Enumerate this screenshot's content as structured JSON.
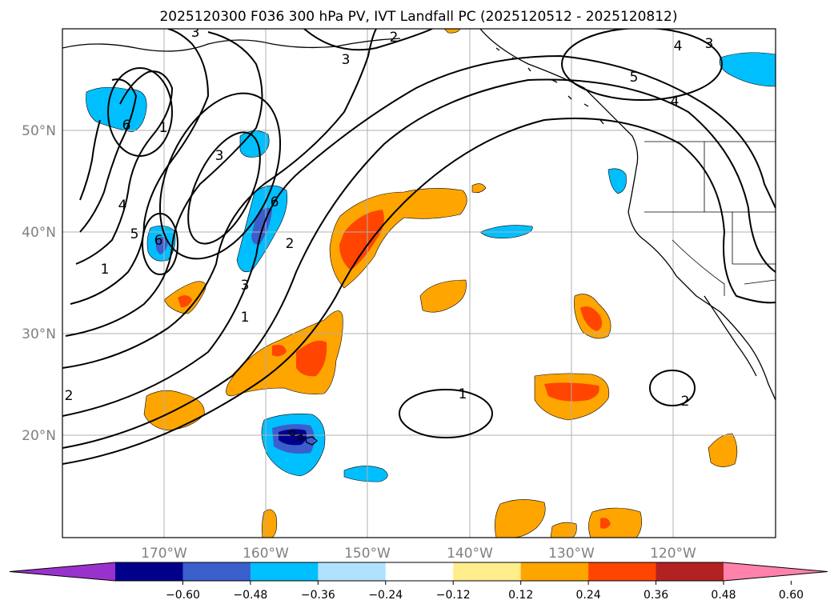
{
  "title": "2025120300 F036 300 hPa PV, IVT Landfall PC (2025120512 - 2025120812)",
  "map": {
    "lat_labels": [
      "50°N",
      "40°N",
      "30°N",
      "20°N"
    ],
    "lon_labels": [
      "170°W",
      "160°W",
      "150°W",
      "140°W",
      "130°W",
      "120°W"
    ],
    "extent": {
      "lon_min": -180,
      "lon_max": -110,
      "lat_min": 10,
      "lat_max": 60
    }
  },
  "colorbar": {
    "ticks": [
      "−0.60",
      "−0.48",
      "−0.36",
      "−0.24",
      "−0.12",
      "0.12",
      "0.24",
      "0.36",
      "0.48",
      "0.60"
    ],
    "colors": [
      "#9932cc",
      "#00008b",
      "#3a5fcd",
      "#00bfff",
      "#b0e2ff",
      "#ffffff",
      "#ffec8b",
      "#ffa500",
      "#ff4500",
      "#b22222",
      "#ff82ab"
    ]
  },
  "contour_labels": [
    "2",
    "3",
    "4",
    "5",
    "6",
    "1",
    "2",
    "3",
    "6",
    "5",
    "4",
    "3",
    "1",
    "2",
    "6",
    "3",
    "1",
    "2",
    "1",
    "2",
    "5",
    "4",
    "3",
    "6",
    "2"
  ],
  "colors": {
    "positive_fill": "#ffa500",
    "strong_positive_fill": "#ff4500",
    "negative_fill": "#00bfff",
    "strong_negative_fill": "#3a5fcd",
    "darkest_negative_fill": "#00008b",
    "gridline": "#b0b0b0"
  }
}
